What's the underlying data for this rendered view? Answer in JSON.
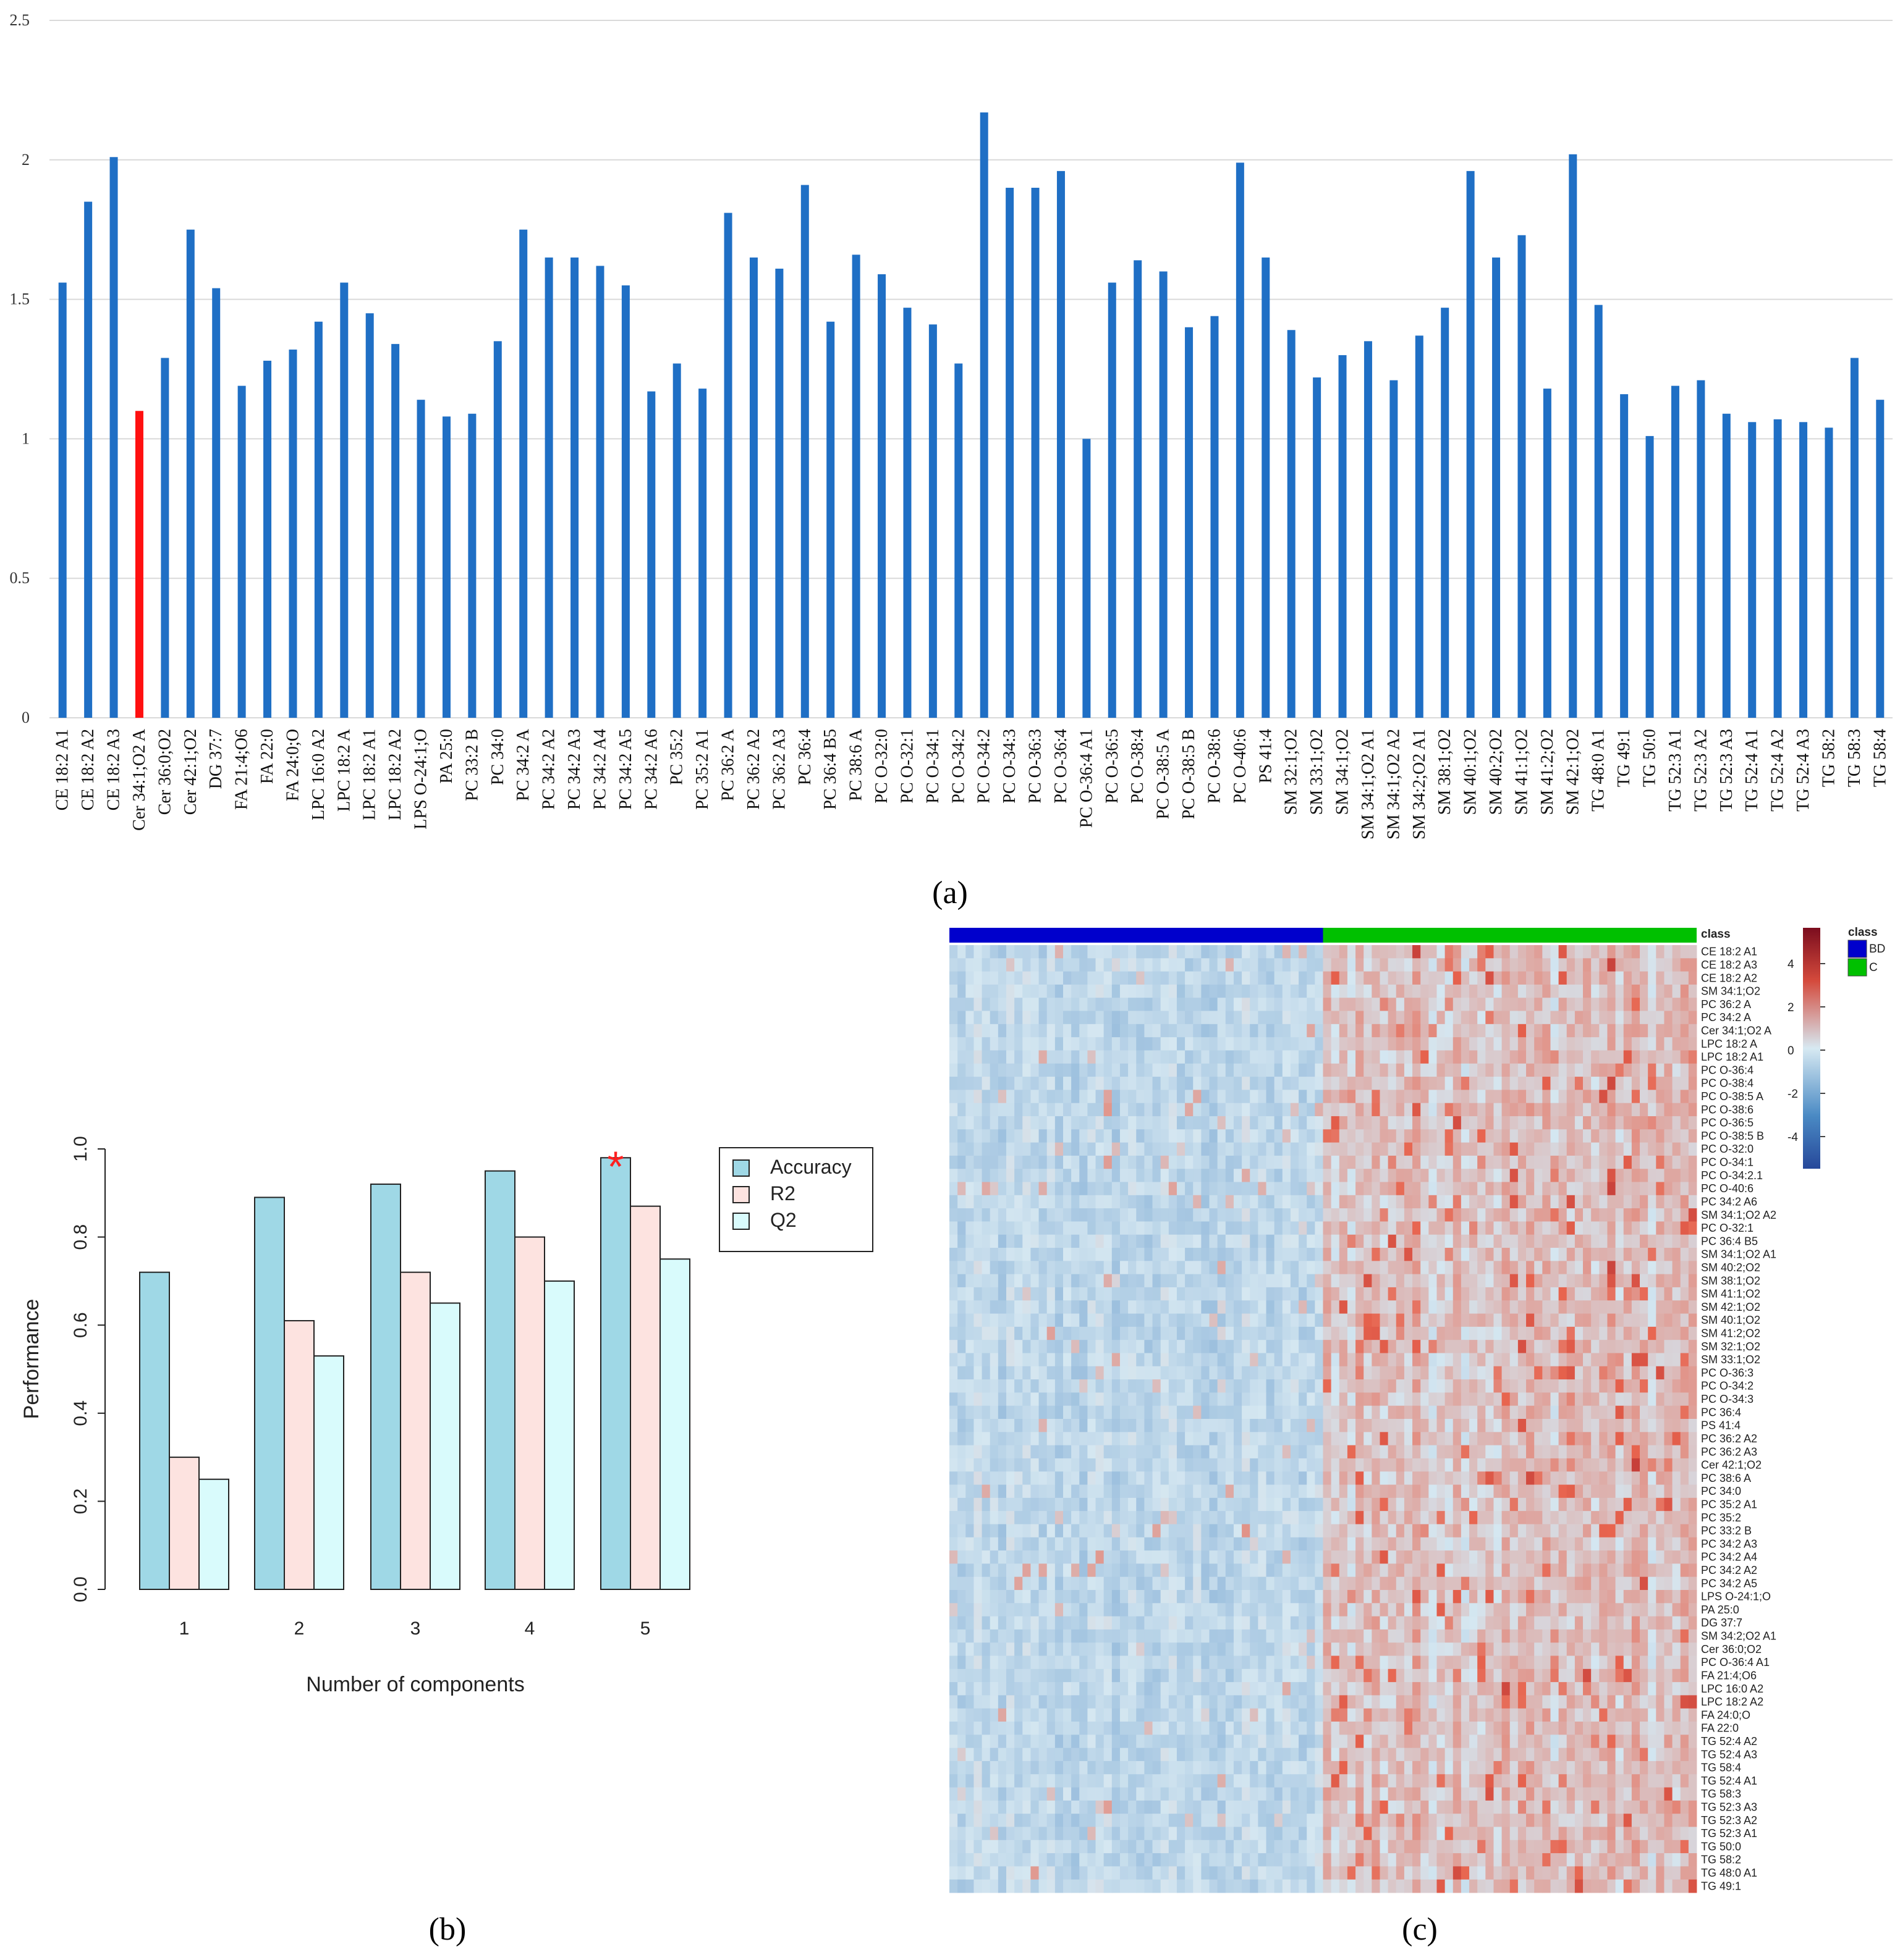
{
  "captions": {
    "a": "(a)",
    "b": "(b)",
    "c": "(c)"
  },
  "colors": {
    "bar": "#1f6fc5",
    "highlight": "#ff1010",
    "grid": "#d9d9d9",
    "accuracy": "#9fd8e6",
    "r2": "#fde3e0",
    "q2": "#d9fbfc",
    "heat_low": "#26489a",
    "heat_mid": "#d7e9f2",
    "heat_high": "#7b0d1e",
    "bd": "#0000cc",
    "c": "#00c000",
    "star": "#ff2020"
  },
  "chart_data": [
    {
      "id": "a",
      "type": "bar",
      "ylim": [
        0,
        2.5
      ],
      "yticks": [
        "0",
        "0.5",
        "1",
        "1.5",
        "2",
        "2.5"
      ],
      "highlight_category": "Cer 34:1;O2 A",
      "categories": [
        "CE 18:2 A1",
        "CE 18:2 A2",
        "CE 18:2 A3",
        "Cer 34:1;O2 A",
        "Cer 36:0;O2",
        "Cer 42:1;O2",
        "DG 37:7",
        "FA 21:4;O6",
        "FA 22:0",
        "FA 24:0;O",
        "LPC 16:0 A2",
        "LPC 18:2 A",
        "LPC 18:2 A1",
        "LPC 18:2 A2",
        "LPS O-24:1;O",
        "PA 25:0",
        "PC 33:2 B",
        "PC 34:0",
        "PC 34:2 A",
        "PC 34:2 A2",
        "PC 34:2 A3",
        "PC 34:2 A4",
        "PC 34:2 A5",
        "PC 34:2 A6",
        "PC 35:2",
        "PC 35:2 A1",
        "PC 36:2 A",
        "PC 36:2 A2",
        "PC 36:2 A3",
        "PC 36:4",
        "PC 36:4 B5",
        "PC 38:6 A",
        "PC O-32:0",
        "PC O-32:1",
        "PC O-34:1",
        "PC O-34:2",
        "PC O-34:2",
        "PC O-34:3",
        "PC O-36:3",
        "PC O-36:4",
        "PC O-36:4 A1",
        "PC O-36:5",
        "PC O-38:4",
        "PC O-38:5 A",
        "PC O-38:5 B",
        "PC O-38:6",
        "PC O-40:6",
        "PS 41:4",
        "SM 32:1;O2",
        "SM 33:1;O2",
        "SM 34:1;O2",
        "SM 34:1;O2 A1",
        "SM 34:1;O2 A2",
        "SM 34:2;O2 A1",
        "SM 38:1;O2",
        "SM 40:1;O2",
        "SM 40:2;O2",
        "SM 41:1;O2",
        "SM 41:2;O2",
        "SM 42:1;O2",
        "TG 48:0 A1",
        "TG 49:1",
        "TG 50:0",
        "TG 52:3 A1",
        "TG 52:3 A2",
        "TG 52:3 A3",
        "TG 52:4 A1",
        "TG 52:4 A2",
        "TG 52:4 A3",
        "TG 58:2",
        "TG 58:3",
        "TG 58:4"
      ],
      "values": [
        1.56,
        1.85,
        2.01,
        1.1,
        1.29,
        1.75,
        1.54,
        1.19,
        1.28,
        1.32,
        1.42,
        1.56,
        1.45,
        1.34,
        1.14,
        1.08,
        1.09,
        1.35,
        1.75,
        1.65,
        1.65,
        1.62,
        1.55,
        1.17,
        1.27,
        1.18,
        1.81,
        1.65,
        1.61,
        1.91,
        1.42,
        1.66,
        1.59,
        1.47,
        1.41,
        1.27,
        2.17,
        1.9,
        1.9,
        1.96,
        1.0,
        1.56,
        1.64,
        1.6,
        1.4,
        1.44,
        1.99,
        1.65,
        1.39,
        1.22,
        1.3,
        1.35,
        1.21,
        1.37,
        1.47,
        1.96,
        1.65,
        1.73,
        1.18,
        2.02,
        1.48,
        1.16,
        1.01,
        1.19,
        1.21,
        1.09,
        1.06,
        1.07,
        1.06,
        1.04,
        1.29,
        1.14
      ]
    },
    {
      "id": "b",
      "type": "bar",
      "xlabel": "Number of components",
      "ylabel": "Performance",
      "ylim": [
        0,
        1.0
      ],
      "yticks": [
        "0.0",
        "0.2",
        "0.4",
        "0.6",
        "0.8",
        "1.0"
      ],
      "categories": [
        "1",
        "2",
        "3",
        "4",
        "5"
      ],
      "series": [
        {
          "name": "Accuracy",
          "values": [
            0.72,
            0.89,
            0.92,
            0.95,
            0.98
          ]
        },
        {
          "name": "R2",
          "values": [
            0.3,
            0.61,
            0.72,
            0.8,
            0.87
          ]
        },
        {
          "name": "Q2",
          "values": [
            0.25,
            0.53,
            0.65,
            0.7,
            0.75
          ]
        }
      ],
      "star_marker": "*",
      "star_category": "5"
    },
    {
      "id": "c",
      "type": "heatmap",
      "class_label": "class",
      "legend_title": "class",
      "classes": [
        {
          "name": "BD",
          "count": 46
        },
        {
          "name": "C",
          "count": 46
        }
      ],
      "colorbar_ticks": [
        "4",
        "2",
        "0",
        "-2",
        "-4"
      ],
      "row_labels": [
        "CE 18:2 A1",
        "CE 18:2 A3",
        "CE 18:2 A2",
        "SM 34:1;O2",
        "PC 36:2 A",
        "PC 34:2 A",
        "Cer 34:1;O2 A",
        "LPC 18:2 A",
        "LPC 18:2 A1",
        "PC O-36:4",
        "PC O-38:4",
        "PC O-38:5 A",
        "PC O-38:6",
        "PC O-36:5",
        "PC O-38:5 B",
        "PC O-32:0",
        "PC O-34:1",
        "PC O-34:2.1",
        "PC O-40:6",
        "PC 34:2 A6",
        "SM 34:1;O2 A2",
        "PC O-32:1",
        "PC 36:4 B5",
        "SM 34:1;O2 A1",
        "SM 40:2;O2",
        "SM 38:1;O2",
        "SM 41:1;O2",
        "SM 42:1;O2",
        "SM 40:1;O2",
        "SM 41:2;O2",
        "SM 32:1;O2",
        "SM 33:1;O2",
        "PC O-36:3",
        "PC O-34:2",
        "PC O-34:3",
        "PC 36:4",
        "PS 41:4",
        "PC 36:2 A2",
        "PC 36:2 A3",
        "Cer 42:1;O2",
        "PC 38:6 A",
        "PC 34:0",
        "PC 35:2 A1",
        "PC 35:2",
        "PC 33:2 B",
        "PC 34:2 A3",
        "PC 34:2 A4",
        "PC 34:2 A2",
        "PC 34:2 A5",
        "LPS O-24:1;O",
        "PA 25:0",
        "DG 37:7",
        "SM 34:2;O2 A1",
        "Cer 36:0;O2",
        "PC O-36:4 A1",
        "FA 21:4;O6",
        "LPC 16:0 A2",
        "LPC 18:2 A2",
        "FA 24:0;O",
        "FA 22:0",
        "TG 52:4 A2",
        "TG 52:4 A3",
        "TG 58:4",
        "TG 52:4 A1",
        "TG 58:3",
        "TG 52:3 A3",
        "TG 52:3 A2",
        "TG 52:3 A1",
        "TG 50:0",
        "TG 58:2",
        "TG 48:0 A1",
        "TG 49:1"
      ]
    }
  ]
}
